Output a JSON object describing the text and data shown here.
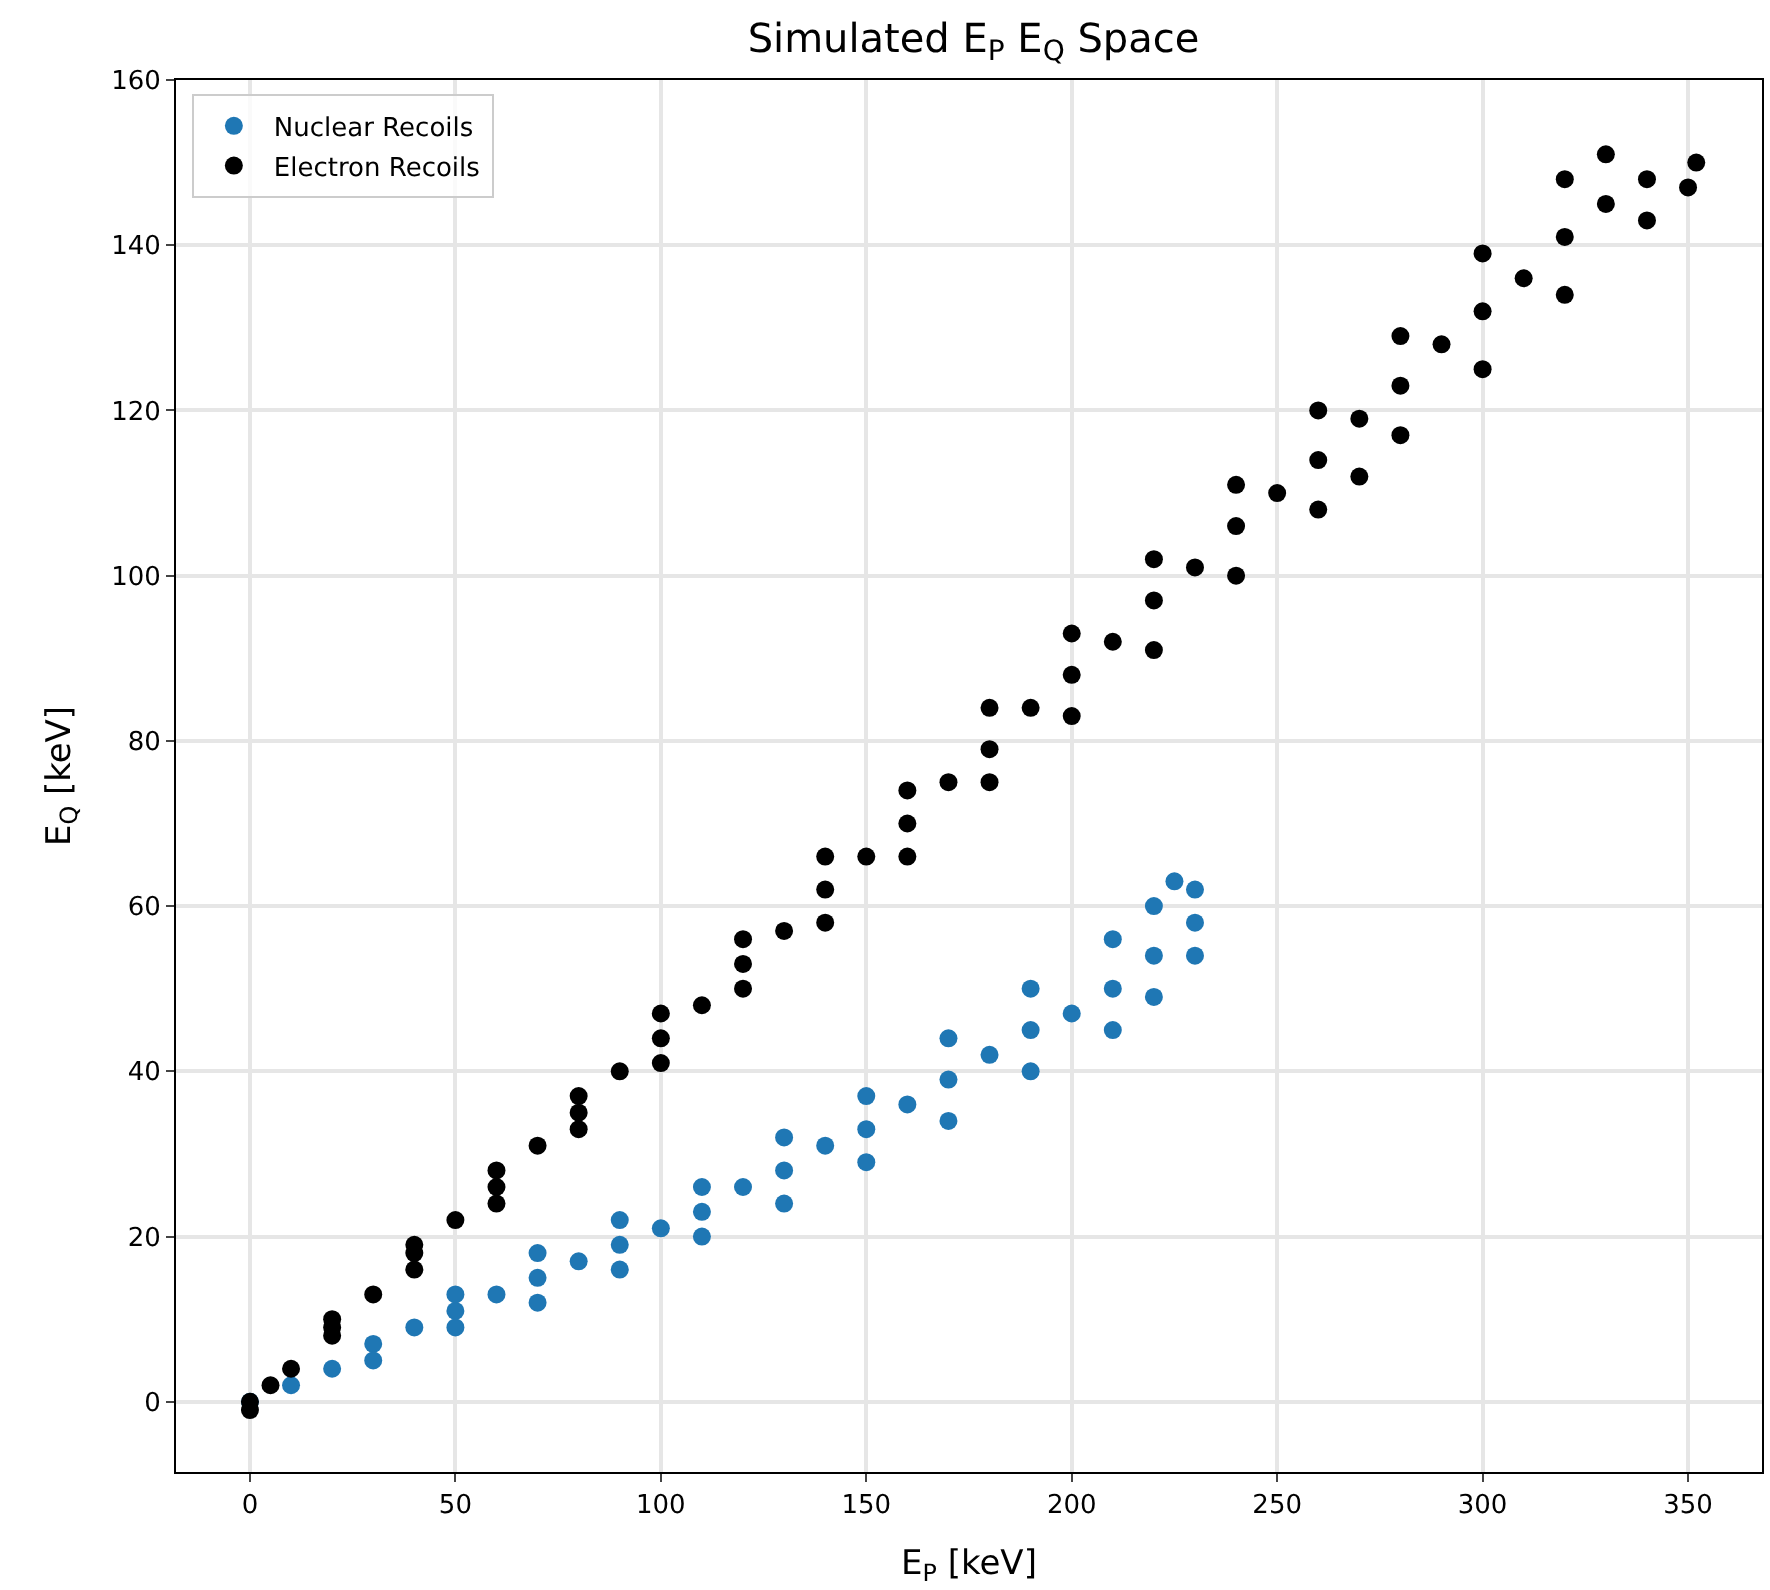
{
  "chart_data": {
    "type": "scatter",
    "title": "Simulated E$_{P}$ E$_{Q}$ Space",
    "xlabel": "E$_{P}$ [keV]",
    "ylabel": "E$_{Q}$ [keV]",
    "xlim": [
      -18,
      368
    ],
    "ylim": [
      -8.5,
      160
    ],
    "xticks": [
      0,
      50,
      100,
      150,
      200,
      250,
      300,
      350
    ],
    "yticks": [
      0,
      20,
      40,
      60,
      80,
      100,
      120,
      140,
      160
    ],
    "grid": true,
    "legend": "top left",
    "marker": "circle",
    "series": [
      {
        "name": "Nuclear Recoils",
        "color": "#1f77b4",
        "x": [
          0,
          10,
          20,
          40,
          50,
          60,
          70,
          80,
          90,
          100,
          110,
          120,
          130,
          140,
          150,
          160,
          170,
          180,
          190,
          200,
          210,
          220,
          230,
          30,
          50,
          70,
          90,
          110,
          130,
          150,
          170,
          190,
          210,
          220,
          225,
          230,
          30,
          50,
          70,
          90,
          110,
          130,
          150,
          170,
          190,
          210,
          220,
          230
        ],
        "values": [
          0,
          2,
          4,
          9,
          11,
          13,
          15,
          17,
          19,
          21,
          23,
          26,
          28,
          31,
          33,
          36,
          39,
          42,
          45,
          47,
          50,
          54,
          58,
          7,
          13,
          18,
          22,
          26,
          32,
          37,
          44,
          50,
          56,
          60,
          63,
          62,
          5,
          9,
          12,
          16,
          20,
          24,
          29,
          34,
          40,
          45,
          49,
          54
        ]
      },
      {
        "name": "Electron Recoils",
        "color": "#000000",
        "x": [
          0,
          10,
          20,
          30,
          40,
          50,
          60,
          70,
          80,
          90,
          100,
          110,
          120,
          130,
          140,
          150,
          160,
          170,
          180,
          190,
          200,
          210,
          220,
          230,
          240,
          250,
          260,
          270,
          280,
          290,
          300,
          310,
          320,
          330,
          340,
          20,
          40,
          60,
          80,
          100,
          120,
          140,
          160,
          180,
          200,
          220,
          240,
          260,
          280,
          300,
          320,
          330,
          20,
          40,
          60,
          80,
          100,
          120,
          140,
          160,
          180,
          200,
          220,
          240,
          260,
          270,
          280,
          300,
          320,
          340,
          350,
          352,
          0,
          5
        ],
        "values": [
          0,
          4,
          9,
          13,
          18,
          22,
          26,
          31,
          35,
          40,
          44,
          48,
          53,
          57,
          62,
          66,
          70,
          75,
          79,
          84,
          88,
          92,
          97,
          101,
          106,
          110,
          114,
          119,
          123,
          128,
          132,
          136,
          141,
          145,
          148,
          10,
          19,
          28,
          37,
          47,
          56,
          66,
          74,
          84,
          93,
          102,
          111,
          120,
          129,
          139,
          148,
          151,
          8,
          16,
          24,
          33,
          41,
          50,
          58,
          66,
          75,
          83,
          91,
          100,
          108,
          112,
          117,
          125,
          134,
          143,
          147,
          150,
          -1,
          2
        ]
      }
    ]
  }
}
